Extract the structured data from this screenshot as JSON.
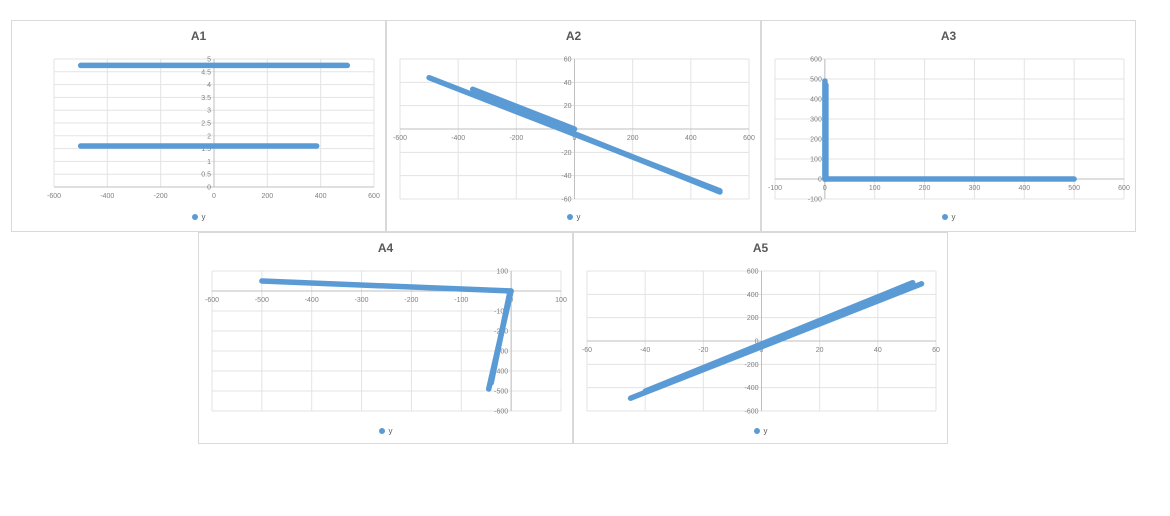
{
  "chart_data": [
    {
      "title": "A1",
      "type": "scatter",
      "xlim": [
        -600,
        600
      ],
      "ylim": [
        0,
        5
      ],
      "xticks": [
        -600,
        -400,
        -200,
        0,
        200,
        400,
        600
      ],
      "yticks": [
        0,
        0.5,
        1,
        1.5,
        2,
        2.5,
        3,
        3.5,
        4,
        4.5,
        5
      ],
      "series": [
        {
          "name": "y",
          "color": "#5b9bd5",
          "segments": [
            [
              [
                -500,
                4.75
              ],
              [
                500,
                4.75
              ]
            ],
            [
              [
                -500,
                1.6
              ],
              [
                385,
                1.6
              ]
            ]
          ]
        }
      ],
      "legend": "bottom",
      "grid": true
    },
    {
      "title": "A2",
      "type": "scatter",
      "xlim": [
        -600,
        600
      ],
      "ylim": [
        -60,
        60
      ],
      "xticks": [
        -600,
        -400,
        -200,
        0,
        200,
        400,
        600
      ],
      "yticks": [
        -60,
        -40,
        -20,
        0,
        20,
        40,
        60
      ],
      "series": [
        {
          "name": "y",
          "color": "#5b9bd5",
          "segments": [
            [
              [
                -500,
                44
              ],
              [
                500,
                -53
              ]
            ],
            [
              [
                -350,
                34
              ],
              [
                0,
                0
              ]
            ],
            [
              [
                0,
                -4
              ],
              [
                500,
                -54
              ]
            ]
          ]
        }
      ],
      "legend": "bottom",
      "grid": true
    },
    {
      "title": "A3",
      "type": "scatter",
      "xlim": [
        -100,
        600
      ],
      "ylim": [
        -100,
        600
      ],
      "xticks": [
        -100,
        0,
        100,
        200,
        300,
        400,
        500,
        600
      ],
      "yticks": [
        -100,
        0,
        100,
        200,
        300,
        400,
        500,
        600
      ],
      "series": [
        {
          "name": "y",
          "color": "#5b9bd5",
          "segments": [
            [
              [
                0,
                0
              ],
              [
                500,
                0
              ]
            ],
            [
              [
                0,
                490
              ],
              [
                0,
                0
              ]
            ],
            [
              [
                2,
                470
              ],
              [
                2,
                0
              ]
            ]
          ]
        }
      ],
      "legend": "bottom",
      "grid": true
    },
    {
      "title": "A4",
      "type": "scatter",
      "xlim": [
        -600,
        100
      ],
      "ylim": [
        -600,
        100
      ],
      "xticks": [
        -600,
        -500,
        -400,
        -300,
        -200,
        -100,
        0,
        100
      ],
      "yticks": [
        -600,
        -500,
        -400,
        -300,
        -200,
        -100,
        0,
        100
      ],
      "series": [
        {
          "name": "y",
          "color": "#5b9bd5",
          "segments": [
            [
              [
                -500,
                50
              ],
              [
                0,
                0
              ]
            ],
            [
              [
                0,
                0
              ],
              [
                -45,
                -490
              ]
            ],
            [
              [
                -2,
                0
              ],
              [
                -40,
                -460
              ]
            ]
          ]
        }
      ],
      "legend": "bottom",
      "grid": true
    },
    {
      "title": "A5",
      "type": "scatter",
      "xlim": [
        -60,
        60
      ],
      "ylim": [
        -600,
        600
      ],
      "xticks": [
        -60,
        -40,
        -20,
        0,
        20,
        40,
        60
      ],
      "yticks": [
        -600,
        -400,
        -200,
        0,
        200,
        400,
        600
      ],
      "series": [
        {
          "name": "y",
          "color": "#5b9bd5",
          "segments": [
            [
              [
                -45,
                -490
              ],
              [
                55,
                490
              ]
            ],
            [
              [
                -40,
                -430
              ],
              [
                52,
                500
              ]
            ]
          ]
        }
      ],
      "legend": "bottom",
      "grid": true
    }
  ]
}
